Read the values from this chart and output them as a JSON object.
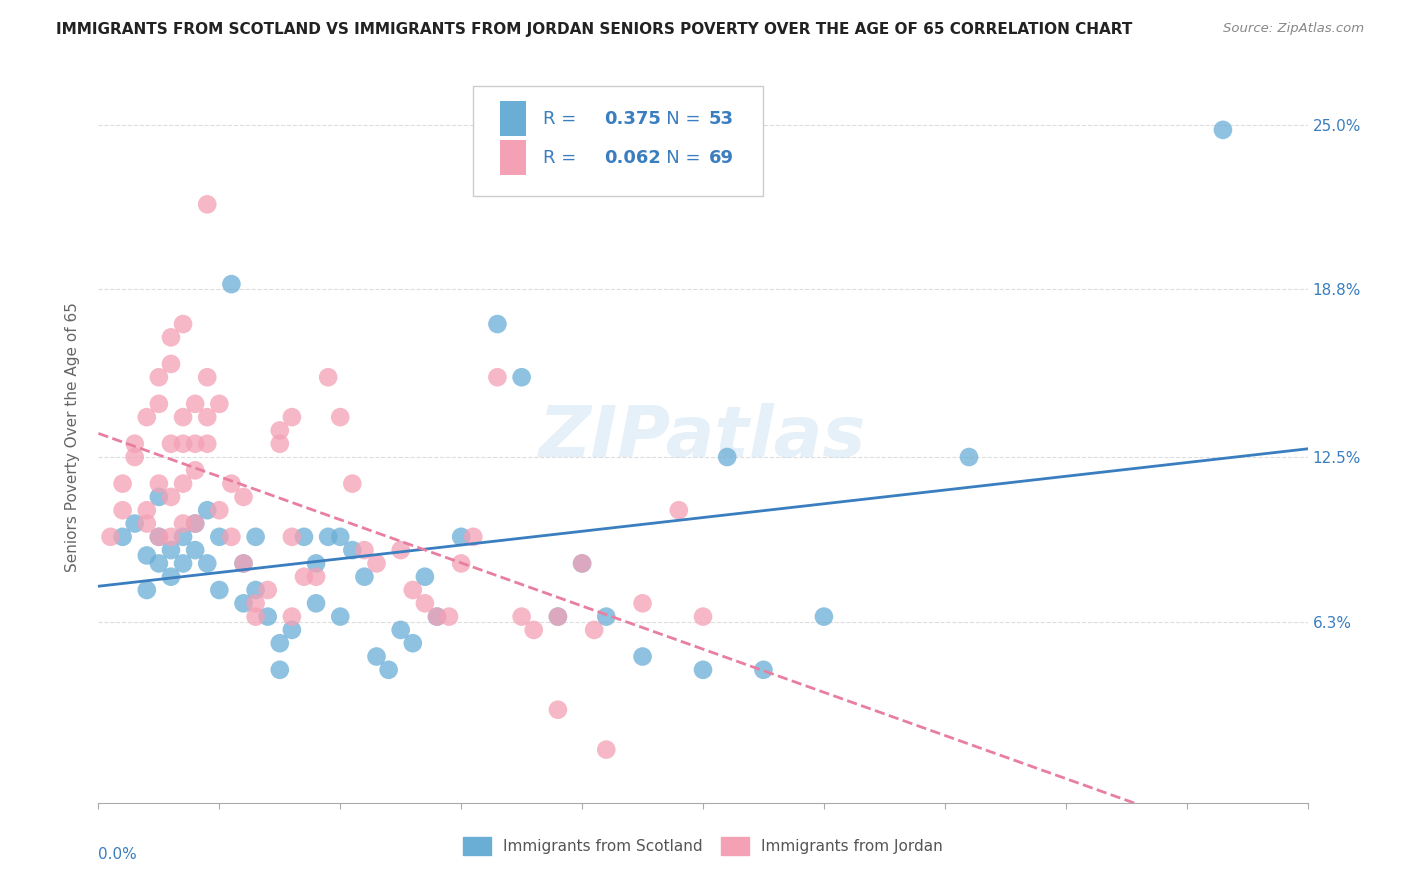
{
  "title": "IMMIGRANTS FROM SCOTLAND VS IMMIGRANTS FROM JORDAN SENIORS POVERTY OVER THE AGE OF 65 CORRELATION CHART",
  "source": "Source: ZipAtlas.com",
  "ylabel": "Seniors Poverty Over the Age of 65",
  "right_yticks": [
    "6.3%",
    "12.5%",
    "18.8%",
    "25.0%"
  ],
  "right_ytick_vals": [
    0.063,
    0.125,
    0.188,
    0.25
  ],
  "xlim": [
    0.0,
    0.1
  ],
  "ylim": [
    -0.005,
    0.27
  ],
  "scotland_color": "#6aaed6",
  "jordan_color": "#f4a0b5",
  "scotland_R": "0.375",
  "scotland_N": "53",
  "jordan_R": "0.062",
  "jordan_N": "69",
  "watermark": "ZIPatlas",
  "scotland_points": [
    [
      0.002,
      0.095
    ],
    [
      0.003,
      0.1
    ],
    [
      0.004,
      0.088
    ],
    [
      0.004,
      0.075
    ],
    [
      0.005,
      0.11
    ],
    [
      0.005,
      0.085
    ],
    [
      0.005,
      0.095
    ],
    [
      0.006,
      0.09
    ],
    [
      0.006,
      0.08
    ],
    [
      0.007,
      0.085
    ],
    [
      0.007,
      0.095
    ],
    [
      0.008,
      0.09
    ],
    [
      0.008,
      0.1
    ],
    [
      0.009,
      0.085
    ],
    [
      0.009,
      0.105
    ],
    [
      0.01,
      0.095
    ],
    [
      0.01,
      0.075
    ],
    [
      0.011,
      0.19
    ],
    [
      0.012,
      0.085
    ],
    [
      0.012,
      0.07
    ],
    [
      0.013,
      0.095
    ],
    [
      0.013,
      0.075
    ],
    [
      0.014,
      0.065
    ],
    [
      0.015,
      0.055
    ],
    [
      0.015,
      0.045
    ],
    [
      0.016,
      0.06
    ],
    [
      0.017,
      0.095
    ],
    [
      0.018,
      0.085
    ],
    [
      0.018,
      0.07
    ],
    [
      0.019,
      0.095
    ],
    [
      0.02,
      0.095
    ],
    [
      0.02,
      0.065
    ],
    [
      0.021,
      0.09
    ],
    [
      0.022,
      0.08
    ],
    [
      0.023,
      0.05
    ],
    [
      0.024,
      0.045
    ],
    [
      0.025,
      0.06
    ],
    [
      0.026,
      0.055
    ],
    [
      0.027,
      0.08
    ],
    [
      0.028,
      0.065
    ],
    [
      0.03,
      0.095
    ],
    [
      0.033,
      0.175
    ],
    [
      0.035,
      0.155
    ],
    [
      0.038,
      0.065
    ],
    [
      0.04,
      0.085
    ],
    [
      0.042,
      0.065
    ],
    [
      0.045,
      0.05
    ],
    [
      0.05,
      0.045
    ],
    [
      0.052,
      0.125
    ],
    [
      0.055,
      0.045
    ],
    [
      0.06,
      0.065
    ],
    [
      0.072,
      0.125
    ],
    [
      0.093,
      0.248
    ]
  ],
  "jordan_points": [
    [
      0.001,
      0.095
    ],
    [
      0.002,
      0.105
    ],
    [
      0.002,
      0.115
    ],
    [
      0.003,
      0.13
    ],
    [
      0.003,
      0.125
    ],
    [
      0.004,
      0.14
    ],
    [
      0.004,
      0.105
    ],
    [
      0.004,
      0.1
    ],
    [
      0.005,
      0.155
    ],
    [
      0.005,
      0.145
    ],
    [
      0.005,
      0.115
    ],
    [
      0.005,
      0.095
    ],
    [
      0.006,
      0.17
    ],
    [
      0.006,
      0.16
    ],
    [
      0.006,
      0.13
    ],
    [
      0.006,
      0.11
    ],
    [
      0.006,
      0.095
    ],
    [
      0.007,
      0.175
    ],
    [
      0.007,
      0.14
    ],
    [
      0.007,
      0.13
    ],
    [
      0.007,
      0.115
    ],
    [
      0.007,
      0.1
    ],
    [
      0.008,
      0.145
    ],
    [
      0.008,
      0.13
    ],
    [
      0.008,
      0.12
    ],
    [
      0.008,
      0.1
    ],
    [
      0.009,
      0.22
    ],
    [
      0.009,
      0.155
    ],
    [
      0.009,
      0.14
    ],
    [
      0.009,
      0.13
    ],
    [
      0.01,
      0.145
    ],
    [
      0.01,
      0.105
    ],
    [
      0.011,
      0.115
    ],
    [
      0.011,
      0.095
    ],
    [
      0.012,
      0.11
    ],
    [
      0.012,
      0.085
    ],
    [
      0.013,
      0.07
    ],
    [
      0.013,
      0.065
    ],
    [
      0.014,
      0.075
    ],
    [
      0.015,
      0.135
    ],
    [
      0.015,
      0.13
    ],
    [
      0.016,
      0.14
    ],
    [
      0.016,
      0.095
    ],
    [
      0.016,
      0.065
    ],
    [
      0.017,
      0.08
    ],
    [
      0.018,
      0.08
    ],
    [
      0.019,
      0.155
    ],
    [
      0.02,
      0.14
    ],
    [
      0.021,
      0.115
    ],
    [
      0.022,
      0.09
    ],
    [
      0.023,
      0.085
    ],
    [
      0.025,
      0.09
    ],
    [
      0.026,
      0.075
    ],
    [
      0.027,
      0.07
    ],
    [
      0.028,
      0.065
    ],
    [
      0.029,
      0.065
    ],
    [
      0.03,
      0.085
    ],
    [
      0.031,
      0.095
    ],
    [
      0.033,
      0.155
    ],
    [
      0.035,
      0.065
    ],
    [
      0.036,
      0.06
    ],
    [
      0.038,
      0.065
    ],
    [
      0.038,
      0.03
    ],
    [
      0.04,
      0.085
    ],
    [
      0.041,
      0.06
    ],
    [
      0.042,
      0.015
    ],
    [
      0.045,
      0.07
    ],
    [
      0.048,
      0.105
    ],
    [
      0.05,
      0.065
    ]
  ],
  "scotland_line_color": "#3a7ebf",
  "jordan_line_color": "#e87fa0",
  "background_color": "#ffffff",
  "grid_color": "#dddddd",
  "legend_text_color": "#3a7ebf"
}
